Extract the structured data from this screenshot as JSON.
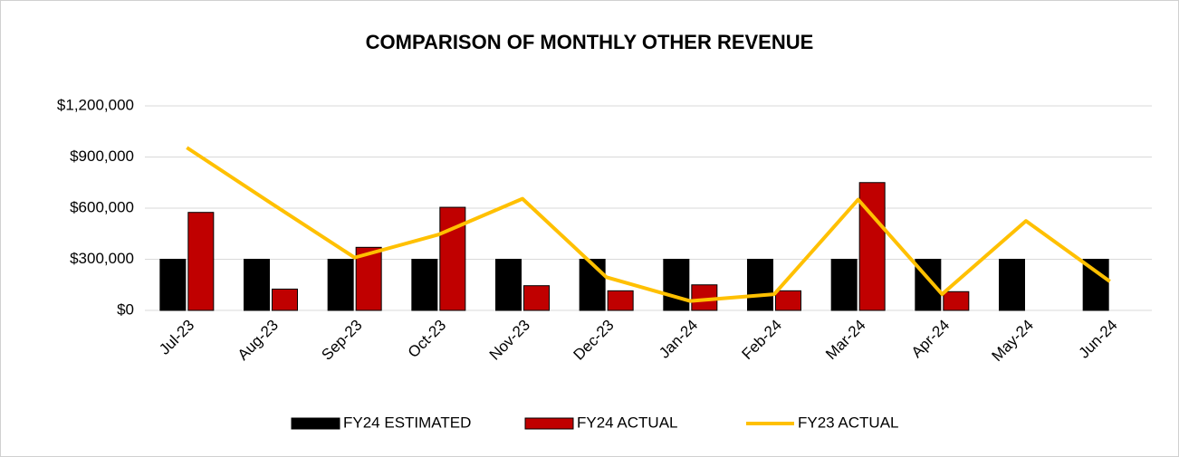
{
  "chart_data": {
    "type": "bar",
    "title": "COMPARISON OF MONTHLY OTHER REVENUE",
    "categories": [
      "Jul-23",
      "Aug-23",
      "Sep-23",
      "Oct-23",
      "Nov-23",
      "Dec-23",
      "Jan-24",
      "Feb-24",
      "Mar-24",
      "Apr-24",
      "May-24",
      "Jun-24"
    ],
    "series": [
      {
        "name": "FY24 ESTIMATED",
        "color": "#000000",
        "type": "bar",
        "values": [
          300000,
          300000,
          300000,
          300000,
          300000,
          300000,
          300000,
          300000,
          300000,
          300000,
          300000,
          300000
        ]
      },
      {
        "name": "FY24 ACTUAL",
        "color": "#c00000",
        "type": "bar",
        "values": [
          575000,
          125000,
          370000,
          605000,
          145000,
          115000,
          150000,
          115000,
          750000,
          110000,
          null,
          null
        ]
      },
      {
        "name": "FY23 ACTUAL",
        "color": "#ffc000",
        "type": "line",
        "values": [
          955000,
          630000,
          310000,
          445000,
          655000,
          195000,
          55000,
          95000,
          650000,
          95000,
          525000,
          170000
        ]
      }
    ],
    "ylim": [
      0,
      1200000
    ],
    "yticks": [
      {
        "value": 0,
        "label": "$0"
      },
      {
        "value": 300000,
        "label": "$300,000"
      },
      {
        "value": 600000,
        "label": "$600,000"
      },
      {
        "value": 900000,
        "label": "$900,000"
      },
      {
        "value": 1200000,
        "label": "$1,200,000"
      }
    ],
    "grid": true,
    "legend": "bottom"
  }
}
